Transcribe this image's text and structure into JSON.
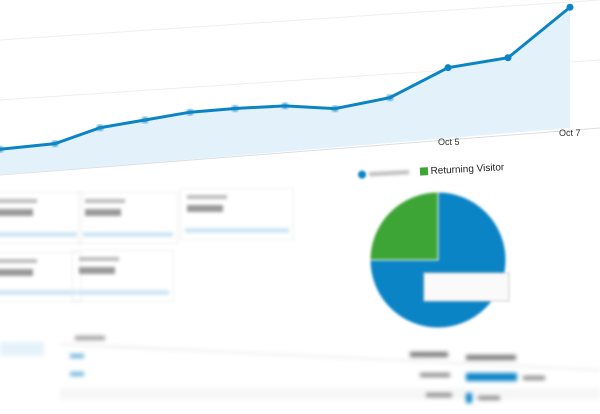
{
  "line_chart": {
    "x_labels": [
      "Oct 5",
      "Oct 7"
    ],
    "trend_values": [
      8,
      10,
      20,
      24,
      28,
      29,
      29,
      25,
      31,
      45,
      50,
      85
    ],
    "line_color": "#0b84c6",
    "fill_color": "#e3f1fa"
  },
  "visitor_pie": {
    "legend": {
      "returning_label": "Returning Visitor"
    },
    "slices": [
      {
        "label": "Returning Visitor",
        "share": 0.25,
        "color": "#3da535"
      },
      {
        "share": 0.75,
        "color": "#0b84c6"
      }
    ]
  },
  "bounce_bars": {
    "bar_color": "#0b84c6",
    "shares": [
      0.85,
      0.1
    ]
  }
}
